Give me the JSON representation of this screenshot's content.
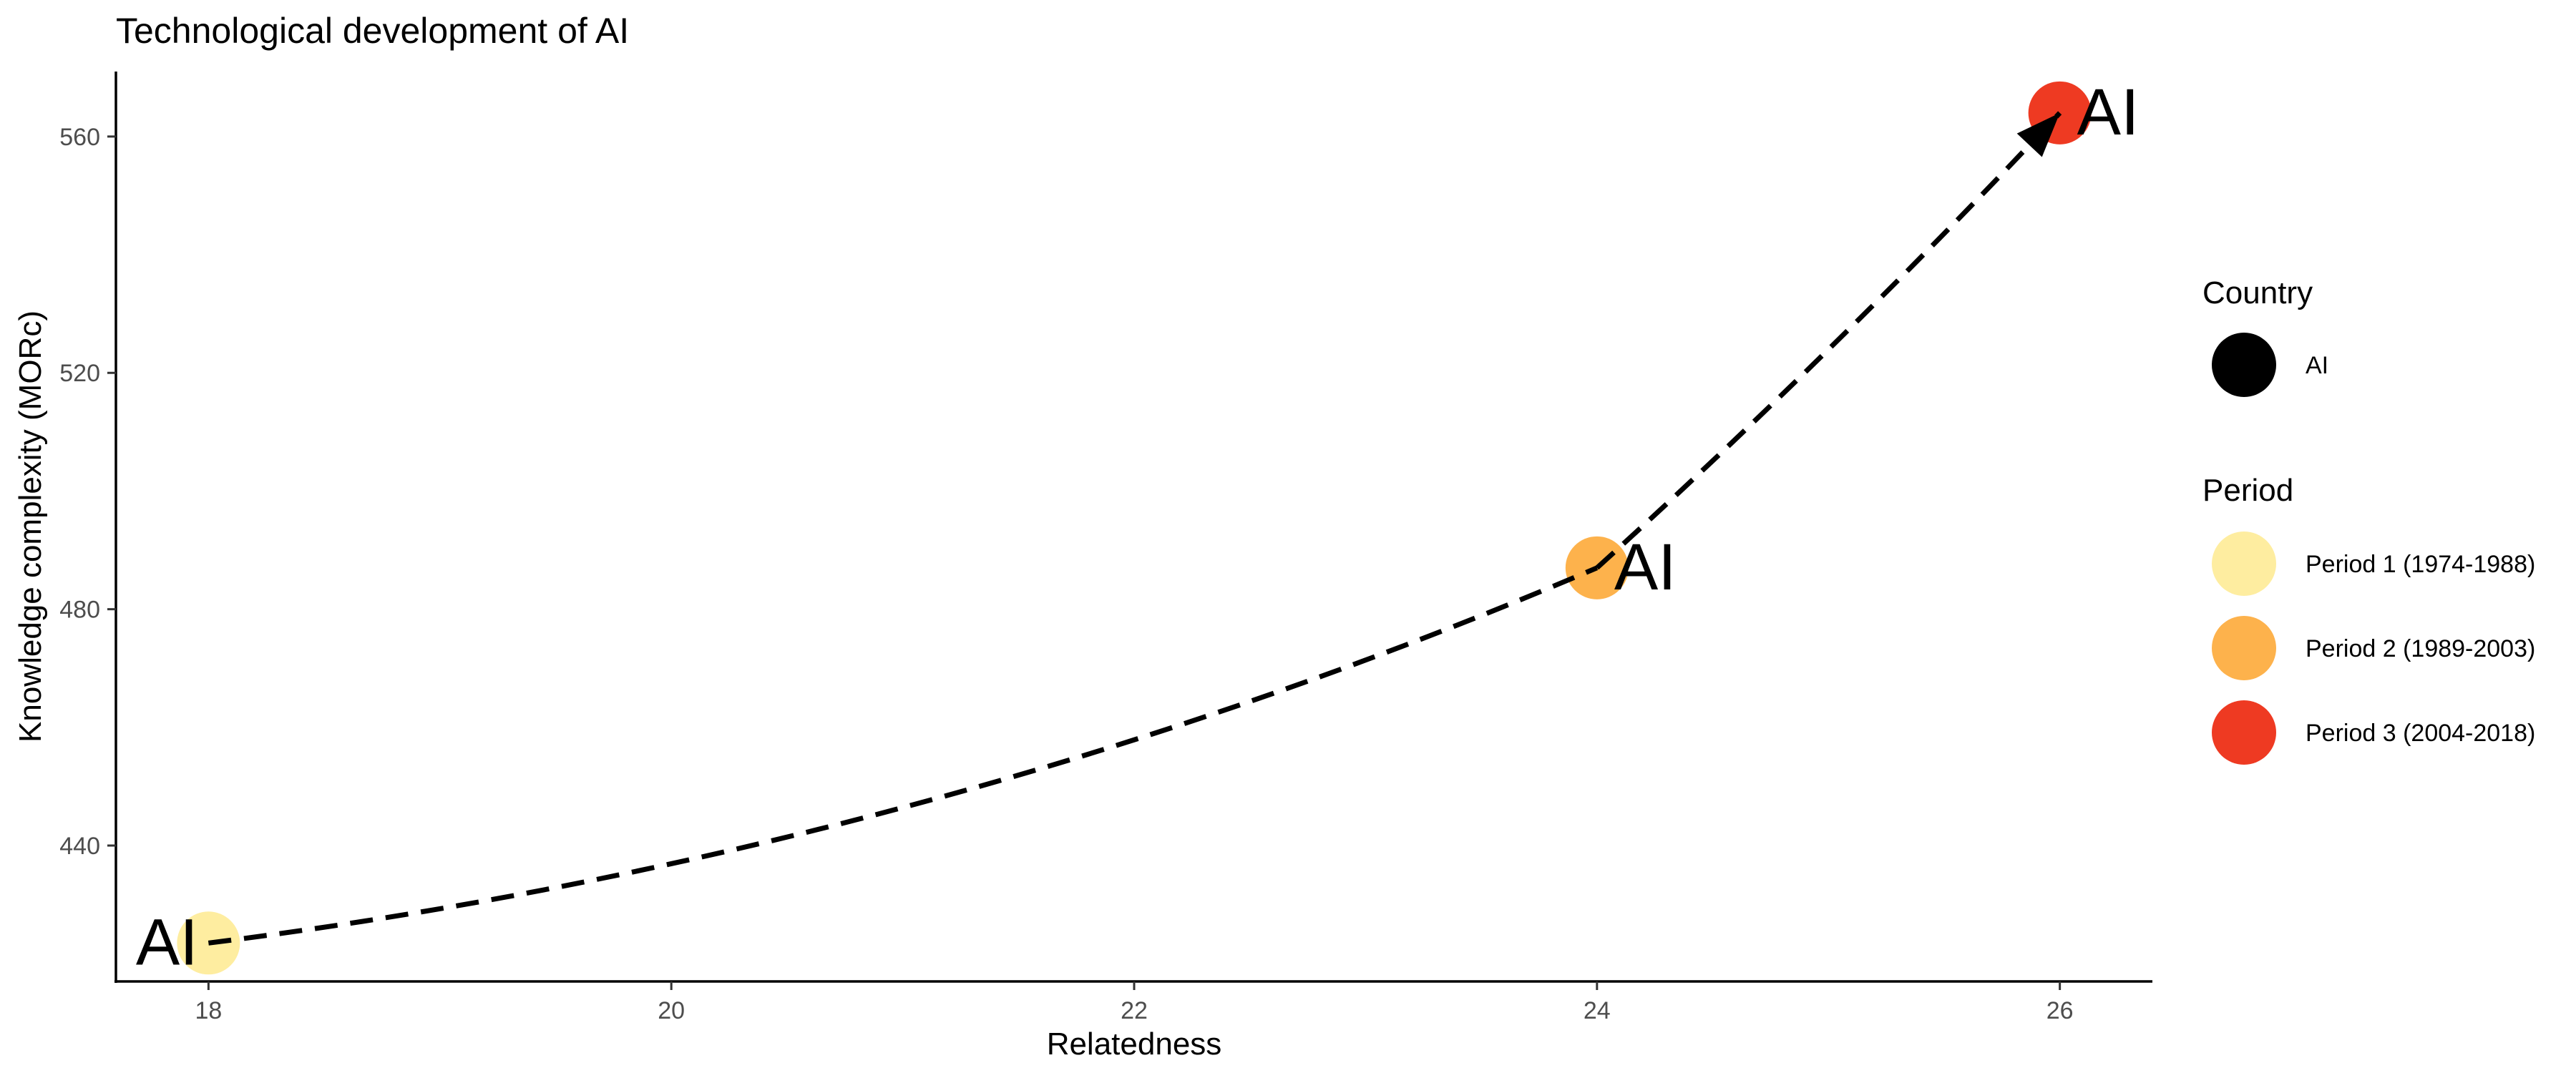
{
  "chart_data": {
    "type": "scatter",
    "title": "Technological development of AI",
    "xlabel": "Relatedness",
    "ylabel": "Knowledge complexity (MORc)",
    "xlim": [
      17.6,
      26.4
    ],
    "ylim": [
      417,
      571
    ],
    "x_ticks": [
      18,
      20,
      22,
      24,
      26
    ],
    "y_ticks": [
      440,
      480,
      520,
      560
    ],
    "grid": false,
    "points": [
      {
        "x": 18,
        "y": 423.5,
        "label": "AI",
        "period": "Period 1 (1974-1988)",
        "color": "#FEEDA0"
      },
      {
        "x": 24,
        "y": 487,
        "label": "AI",
        "period": "Period 2 (1989-2003)",
        "color": "#FDB24C"
      },
      {
        "x": 26,
        "y": 564,
        "label": "AI",
        "period": "Period 3 (2004-2018)",
        "color": "#EE3A22"
      }
    ],
    "path": {
      "style": "dashed",
      "arrow_at_end": true,
      "color": "#000000"
    },
    "legends": [
      {
        "title": "Country",
        "placement": "right",
        "items": [
          {
            "label": "AI",
            "color": "#000000"
          }
        ]
      },
      {
        "title": "Period",
        "placement": "right",
        "items": [
          {
            "label": "Period 1 (1974-1988)",
            "color": "#FEEDA0"
          },
          {
            "label": "Period 2 (1989-2003)",
            "color": "#FDB24C"
          },
          {
            "label": "Period 3 (2004-2018)",
            "color": "#EE3A22"
          }
        ]
      }
    ]
  }
}
